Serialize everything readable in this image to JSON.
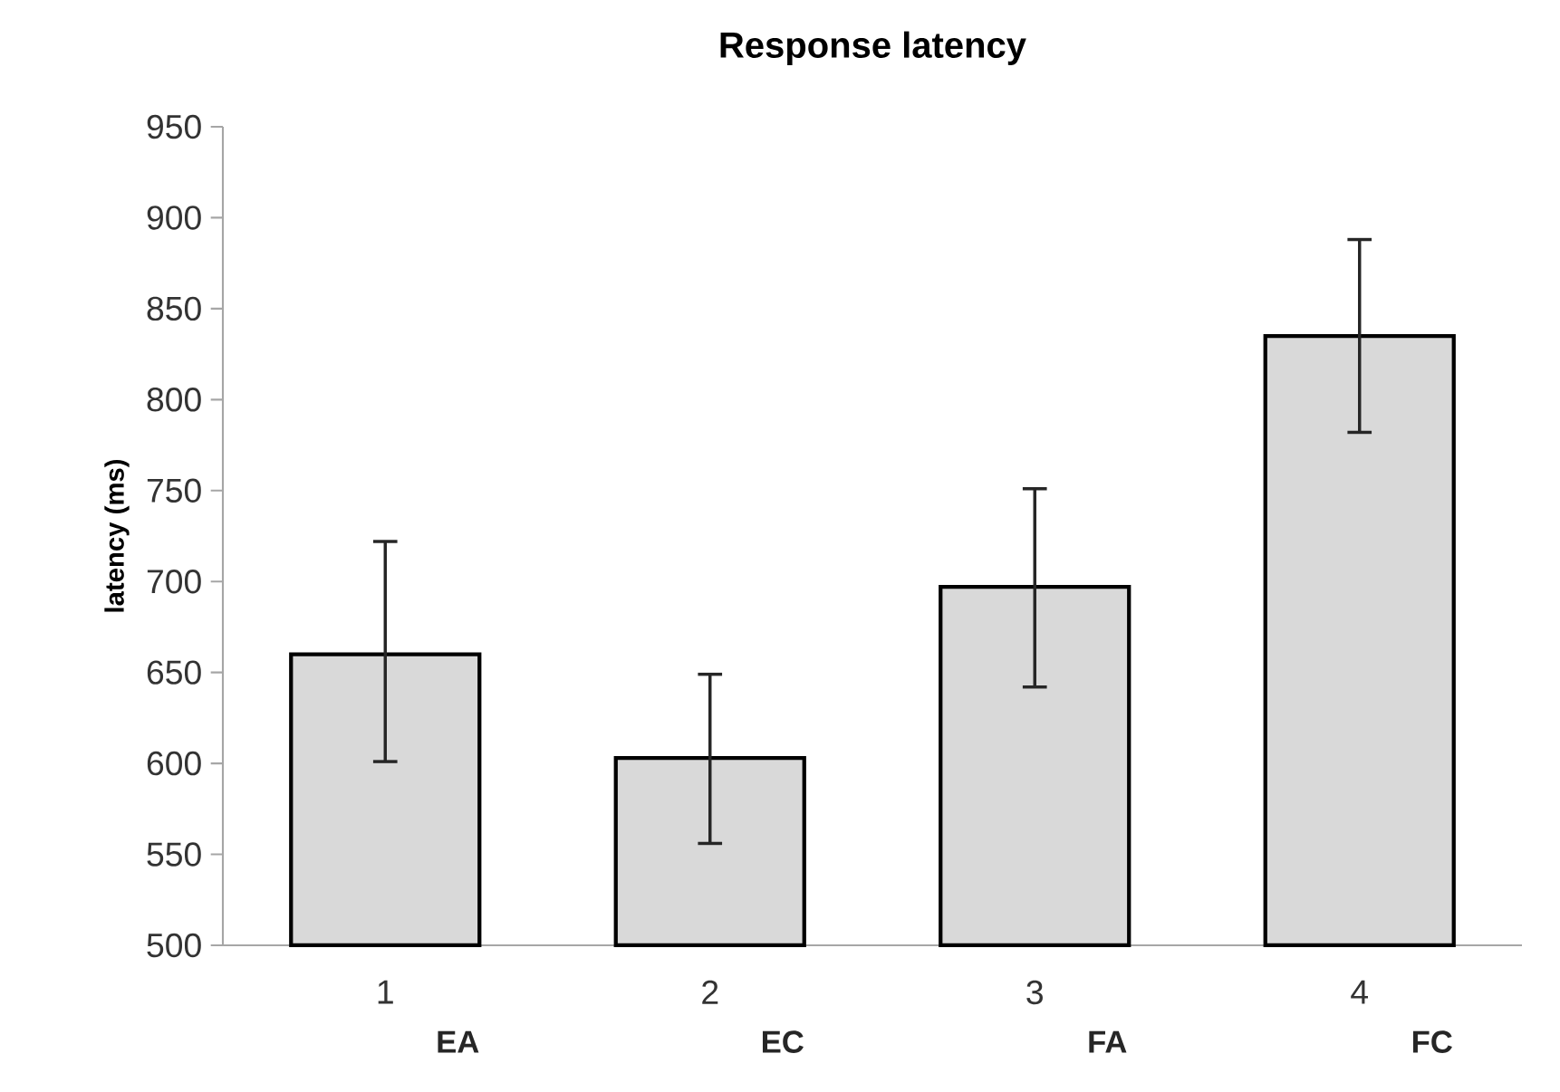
{
  "chart_data": {
    "type": "bar",
    "title": "Response latency",
    "ylabel": "latency (ms)",
    "categories": [
      "1",
      "2",
      "3",
      "4"
    ],
    "values": [
      660,
      603,
      697,
      835
    ],
    "errors": [
      [
        601,
        722
      ],
      [
        556,
        649
      ],
      [
        642,
        751
      ],
      [
        782,
        888
      ]
    ],
    "color": "#d9d9d9",
    "ylim": [
      500,
      950
    ],
    "yticks": [
      500,
      550,
      600,
      650,
      700,
      750,
      800,
      850,
      900,
      950
    ],
    "grid": false,
    "annotations": [
      "EA",
      "EC",
      "FA",
      "FC"
    ]
  }
}
